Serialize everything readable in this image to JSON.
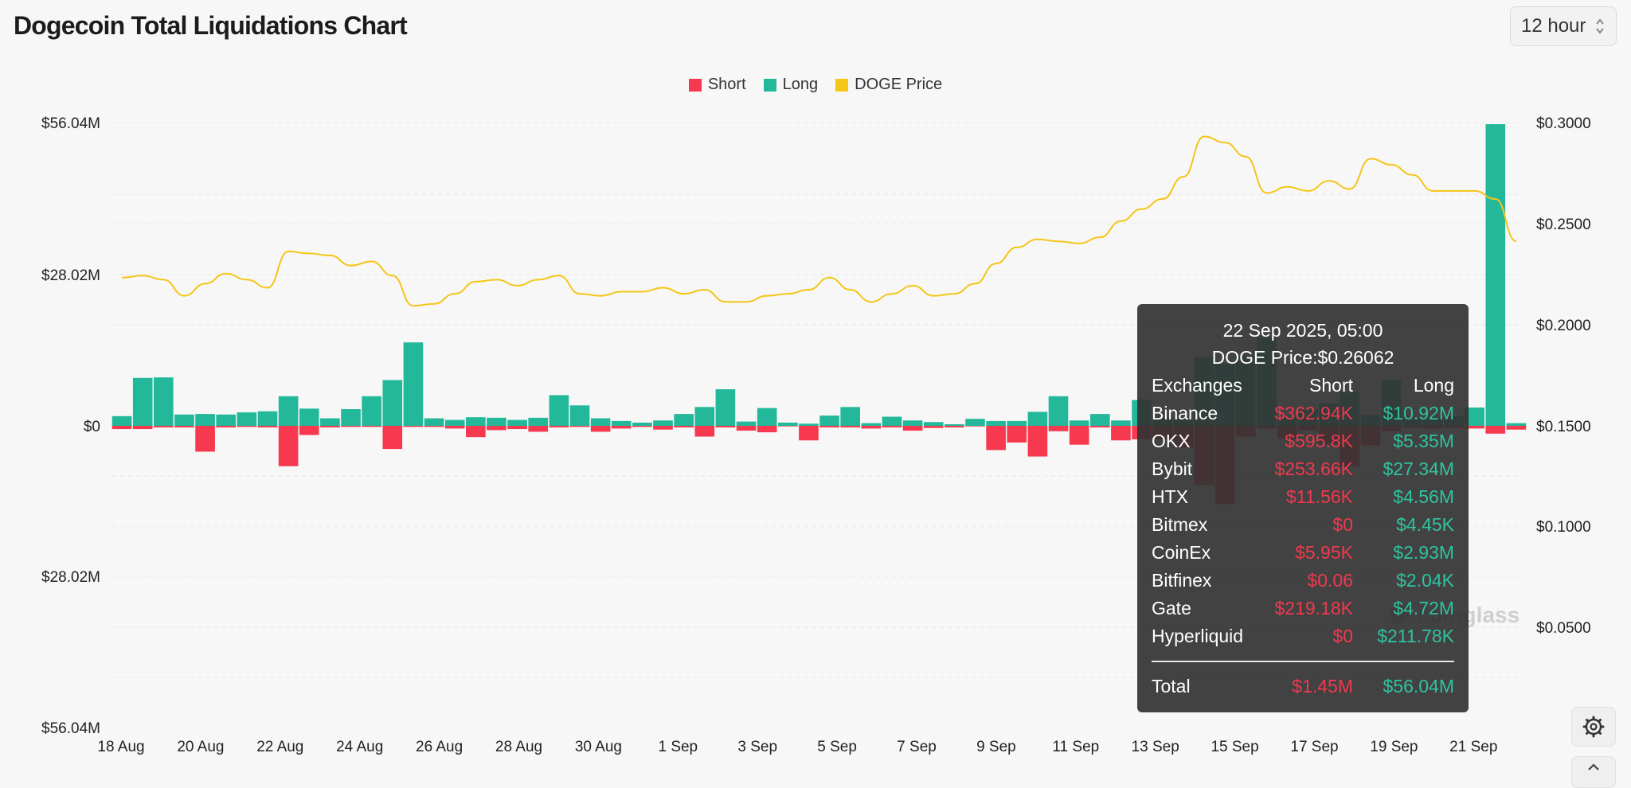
{
  "page": {
    "title": "Dogecoin Total Liquidations Chart"
  },
  "controls": {
    "interval": "12 hour",
    "settings_icon": "settings-gear-icon",
    "scroll_icon": "chevron-up-icon"
  },
  "colors": {
    "short": "#f6394e",
    "long": "#23b89a",
    "price": "#f5c518"
  },
  "chart_data": {
    "type": "bar",
    "title": "Dogecoin Total Liquidations Chart",
    "legend": [
      "Short",
      "Long",
      "DOGE Price"
    ],
    "legend_position": "top-center",
    "grid": true,
    "y_left_ticks": [
      "$56.04M",
      "$28.02M",
      "$0",
      "$28.02M",
      "$56.04M"
    ],
    "y_right_ticks": [
      "$0.3000",
      "$0.2500",
      "$0.2000",
      "$0.1500",
      "$0.1000",
      "$0.0500"
    ],
    "x_ticks": [
      "18 Aug",
      "20 Aug",
      "22 Aug",
      "24 Aug",
      "26 Aug",
      "28 Aug",
      "30 Aug",
      "1 Sep",
      "3 Sep",
      "5 Sep",
      "7 Sep",
      "9 Sep",
      "11 Sep",
      "13 Sep",
      "15 Sep",
      "17 Sep",
      "19 Sep",
      "21 Sep"
    ],
    "ylim_liquidations": [
      -56.04,
      56.04
    ],
    "ylim_price": [
      0.0,
      0.3
    ],
    "units": "millions USD (bars), USD (price)",
    "series": [
      {
        "name": "Long",
        "values": [
          1.8,
          8.9,
          9.0,
          2.1,
          2.2,
          2.1,
          2.5,
          2.7,
          5.5,
          3.2,
          1.4,
          3.1,
          5.5,
          8.5,
          15.5,
          1.4,
          1.1,
          1.6,
          1.5,
          1.1,
          1.5,
          5.7,
          3.8,
          1.4,
          0.9,
          0.6,
          1.0,
          2.2,
          3.5,
          6.8,
          0.8,
          3.3,
          0.6,
          0.4,
          1.9,
          3.5,
          0.5,
          1.7,
          1.0,
          0.7,
          0.3,
          1.3,
          0.9,
          0.9,
          2.6,
          5.5,
          1.0,
          2.2,
          1.0,
          4.8,
          1.5,
          1.2,
          12.8,
          11.5,
          13.0,
          16.4,
          1.6,
          3.0,
          4.2,
          6.2,
          2.0,
          8.5,
          1.2,
          1.6,
          1.8,
          3.4,
          56.04,
          0.5
        ]
      },
      {
        "name": "Short",
        "values": [
          0.6,
          0.6,
          0.3,
          0.3,
          4.8,
          0.3,
          0.2,
          0.3,
          7.5,
          1.7,
          0.3,
          0.2,
          0.2,
          4.3,
          0.2,
          0.2,
          0.5,
          2.1,
          0.8,
          0.6,
          1.1,
          0.3,
          0.2,
          1.1,
          0.5,
          0.2,
          0.7,
          0.3,
          2.0,
          0.3,
          0.9,
          1.2,
          0.1,
          2.7,
          0.3,
          0.3,
          0.5,
          0.3,
          0.9,
          0.4,
          0.3,
          0.1,
          4.5,
          3.1,
          5.7,
          1.0,
          3.5,
          0.3,
          2.7,
          2.5,
          2.5,
          4.1,
          11.0,
          14.5,
          2.0,
          0.5,
          2.4,
          0.8,
          3.3,
          7.5,
          3.6,
          1.0,
          0.3,
          0.5,
          0.4,
          0.5,
          1.45,
          0.7
        ]
      },
      {
        "name": "DOGE Price",
        "values": [
          0.2235,
          0.2245,
          0.2225,
          0.2145,
          0.2205,
          0.2255,
          0.2225,
          0.2185,
          0.2365,
          0.2355,
          0.2345,
          0.2295,
          0.2315,
          0.2245,
          0.2095,
          0.2105,
          0.2155,
          0.2215,
          0.2225,
          0.2195,
          0.2225,
          0.2245,
          0.2155,
          0.2145,
          0.2165,
          0.2165,
          0.2185,
          0.2155,
          0.2175,
          0.2115,
          0.2115,
          0.2145,
          0.2155,
          0.2175,
          0.2235,
          0.2175,
          0.2115,
          0.2155,
          0.2195,
          0.2145,
          0.2155,
          0.2205,
          0.2305,
          0.2385,
          0.2425,
          0.2415,
          0.2405,
          0.2435,
          0.2515,
          0.2575,
          0.2625,
          0.2735,
          0.2935,
          0.2905,
          0.2835,
          0.2655,
          0.2685,
          0.2665,
          0.2715,
          0.2675,
          0.2825,
          0.2795,
          0.2745,
          0.2665,
          0.2665,
          0.2665,
          0.2625,
          0.2415
        ]
      }
    ]
  },
  "tooltip": {
    "time": "22 Sep 2025, 05:00",
    "price_label": "DOGE Price:$0.26062",
    "headers": [
      "Exchanges",
      "Short",
      "Long"
    ],
    "rows": [
      {
        "exchange": "Binance",
        "short": "$362.94K",
        "long": "$10.92M"
      },
      {
        "exchange": "OKX",
        "short": "$595.8K",
        "long": "$5.35M"
      },
      {
        "exchange": "Bybit",
        "short": "$253.66K",
        "long": "$27.34M"
      },
      {
        "exchange": "HTX",
        "short": "$11.56K",
        "long": "$4.56M"
      },
      {
        "exchange": "Bitmex",
        "short": "$0",
        "long": "$4.45K"
      },
      {
        "exchange": "CoinEx",
        "short": "$5.95K",
        "long": "$2.93M"
      },
      {
        "exchange": "Bitfinex",
        "short": "$0.06",
        "long": "$2.04K"
      },
      {
        "exchange": "Gate",
        "short": "$219.18K",
        "long": "$4.72M"
      },
      {
        "exchange": "Hyperliquid",
        "short": "$0",
        "long": "$211.78K"
      }
    ],
    "total": {
      "label": "Total",
      "short": "$1.45M",
      "long": "$56.04M"
    }
  },
  "watermark": "coinglass"
}
